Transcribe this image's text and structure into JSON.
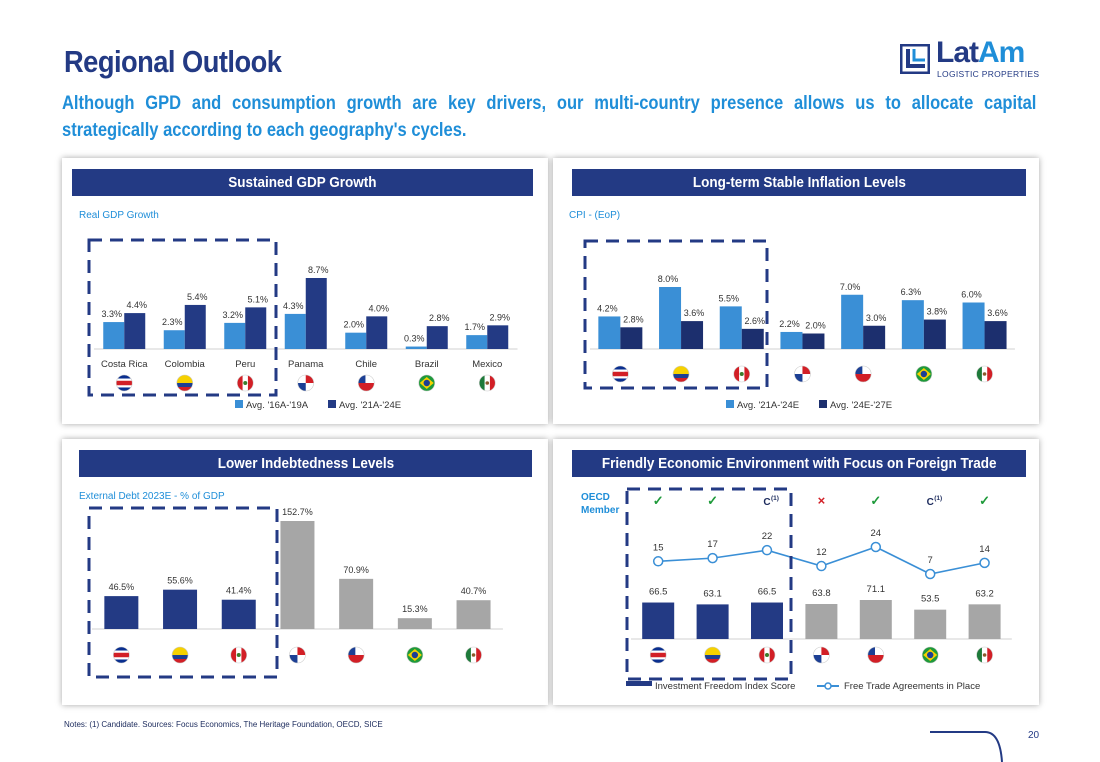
{
  "page": {
    "title": "Regional Outlook",
    "subtitle": "Although GPD and consumption growth are key drivers, our multi-country presence allows us to allocate capital strategically according to each geography's cycles.",
    "logo": {
      "name_a": "Lat",
      "name_b": "Am",
      "tagline": "LOGISTIC PROPERTIES"
    },
    "notes": "Notes: (1) Candidate. Sources: Focus Economics, The Heritage Foundation, OECD, SICE",
    "page_number": "20",
    "colors": {
      "navy": "#233a84",
      "blue": "#1f8ed8",
      "light_blue": "#3a8fd6",
      "dark_navy": "#1c2f6e",
      "grey": "#a6a6a6"
    }
  },
  "panels": {
    "gdp": {
      "header": "Sustained GDP Growth",
      "label": "Real GDP Growth"
    },
    "cpi": {
      "header": "Long-term Stable Inflation Levels",
      "label": "CPI - (EoP)"
    },
    "debt": {
      "header": "Lower Indebtedness Levels",
      "label": "External Debt 2023E - % of GDP"
    },
    "trade": {
      "header": "Friendly Economic Environment with Focus on Foreign Trade",
      "oecd_line1": "OECD",
      "oecd_line2": "Member"
    }
  },
  "chart_data": [
    {
      "type": "bar",
      "title": "Sustained GDP Growth",
      "ylabel": "Real GDP Growth",
      "categories": [
        "Costa Rica",
        "Colombia",
        "Peru",
        "Panama",
        "Chile",
        "Brazil",
        "Mexico"
      ],
      "series": [
        {
          "name": "Avg. '16A-'19A",
          "values": [
            3.3,
            2.3,
            3.2,
            4.3,
            2.0,
            0.3,
            1.7
          ],
          "labels": [
            "3.3%",
            "2.3%",
            "3.2%",
            "4.3%",
            "2.0%",
            "0.3%",
            "1.7%"
          ],
          "color": "#3a8fd6"
        },
        {
          "name": "Avg. '21A-'24E",
          "values": [
            4.4,
            5.4,
            5.1,
            8.7,
            4.0,
            2.8,
            2.9
          ],
          "labels": [
            "4.4%",
            "5.4%",
            "5.1%",
            "8.7%",
            "4.0%",
            "2.8%",
            "2.9%"
          ],
          "color": "#233a84"
        }
      ],
      "ylim": [
        0,
        9.5
      ],
      "flags": [
        "costa-rica",
        "colombia",
        "peru",
        "panama",
        "chile",
        "brazil",
        "mexico"
      ],
      "legend": "bottom"
    },
    {
      "type": "bar",
      "title": "Long-term Stable Inflation Levels",
      "ylabel": "CPI - (EoP)",
      "categories": [
        "Costa Rica",
        "Colombia",
        "Peru",
        "Panama",
        "Chile",
        "Brazil",
        "Mexico"
      ],
      "series": [
        {
          "name": "Avg. '21A-'24E",
          "values": [
            4.2,
            8.0,
            5.5,
            2.2,
            7.0,
            6.3,
            6.0
          ],
          "labels": [
            "4.2%",
            "8.0%",
            "5.5%",
            "2.2%",
            "7.0%",
            "6.3%",
            "6.0%"
          ],
          "color": "#3a8fd6"
        },
        {
          "name": "Avg. '24E-'27E",
          "values": [
            2.8,
            3.6,
            2.6,
            2.0,
            3.0,
            3.8,
            3.6
          ],
          "labels": [
            "2.8%",
            "3.6%",
            "2.6%",
            "2.0%",
            "3.0%",
            "3.8%",
            "3.6%"
          ],
          "color": "#1c2f6e"
        }
      ],
      "ylim": [
        0,
        9
      ],
      "flags": [
        "costa-rica",
        "colombia",
        "peru",
        "panama",
        "chile",
        "brazil",
        "mexico"
      ],
      "legend": "bottom"
    },
    {
      "type": "bar",
      "title": "Lower Indebtedness Levels",
      "ylabel": "External Debt 2023E - % of GDP",
      "categories": [
        "Costa Rica",
        "Colombia",
        "Peru",
        "Panama",
        "Chile",
        "Brazil",
        "Mexico"
      ],
      "values": [
        46.5,
        55.6,
        41.4,
        152.7,
        70.9,
        15.3,
        40.7
      ],
      "labels": [
        "46.5%",
        "55.6%",
        "41.4%",
        "152.7%",
        "70.9%",
        "15.3%",
        "40.7%"
      ],
      "colors": [
        "#233a84",
        "#233a84",
        "#233a84",
        "#a6a6a6",
        "#a6a6a6",
        "#a6a6a6",
        "#a6a6a6"
      ],
      "ylim": [
        0,
        160
      ],
      "flags": [
        "costa-rica",
        "colombia",
        "peru",
        "panama",
        "chile",
        "brazil",
        "mexico"
      ]
    },
    {
      "type": "bar",
      "title": "Friendly Economic Environment with Focus on Foreign Trade",
      "categories": [
        "Costa Rica",
        "Colombia",
        "Peru",
        "Panama",
        "Chile",
        "Brazil",
        "Mexico"
      ],
      "oecd": [
        "✓",
        "✓",
        "C",
        "×",
        "✓",
        "C",
        "✓"
      ],
      "oecd_sup": [
        "",
        "",
        "(1)",
        "",
        "",
        "(1)",
        ""
      ],
      "series": [
        {
          "name": "Investment Freedom Index Score",
          "type": "bar",
          "values": [
            66.5,
            63.1,
            66.5,
            63.8,
            71.1,
            53.5,
            63.2
          ],
          "labels": [
            "66.5",
            "63.1",
            "66.5",
            "63.8",
            "71.1",
            "53.5",
            "63.2"
          ],
          "colors": [
            "#233a84",
            "#233a84",
            "#233a84",
            "#a6a6a6",
            "#a6a6a6",
            "#a6a6a6",
            "#a6a6a6"
          ]
        },
        {
          "name": "Free Trade Agreements in Place",
          "type": "line",
          "values": [
            15,
            17,
            22,
            12,
            24,
            7,
            14
          ],
          "labels": [
            "15",
            "17",
            "22",
            "12",
            "24",
            "7",
            "14"
          ],
          "color": "#3a8fd6"
        }
      ],
      "flags": [
        "costa-rica",
        "colombia",
        "peru",
        "panama",
        "chile",
        "brazil",
        "mexico"
      ],
      "legend": "bottom"
    }
  ]
}
